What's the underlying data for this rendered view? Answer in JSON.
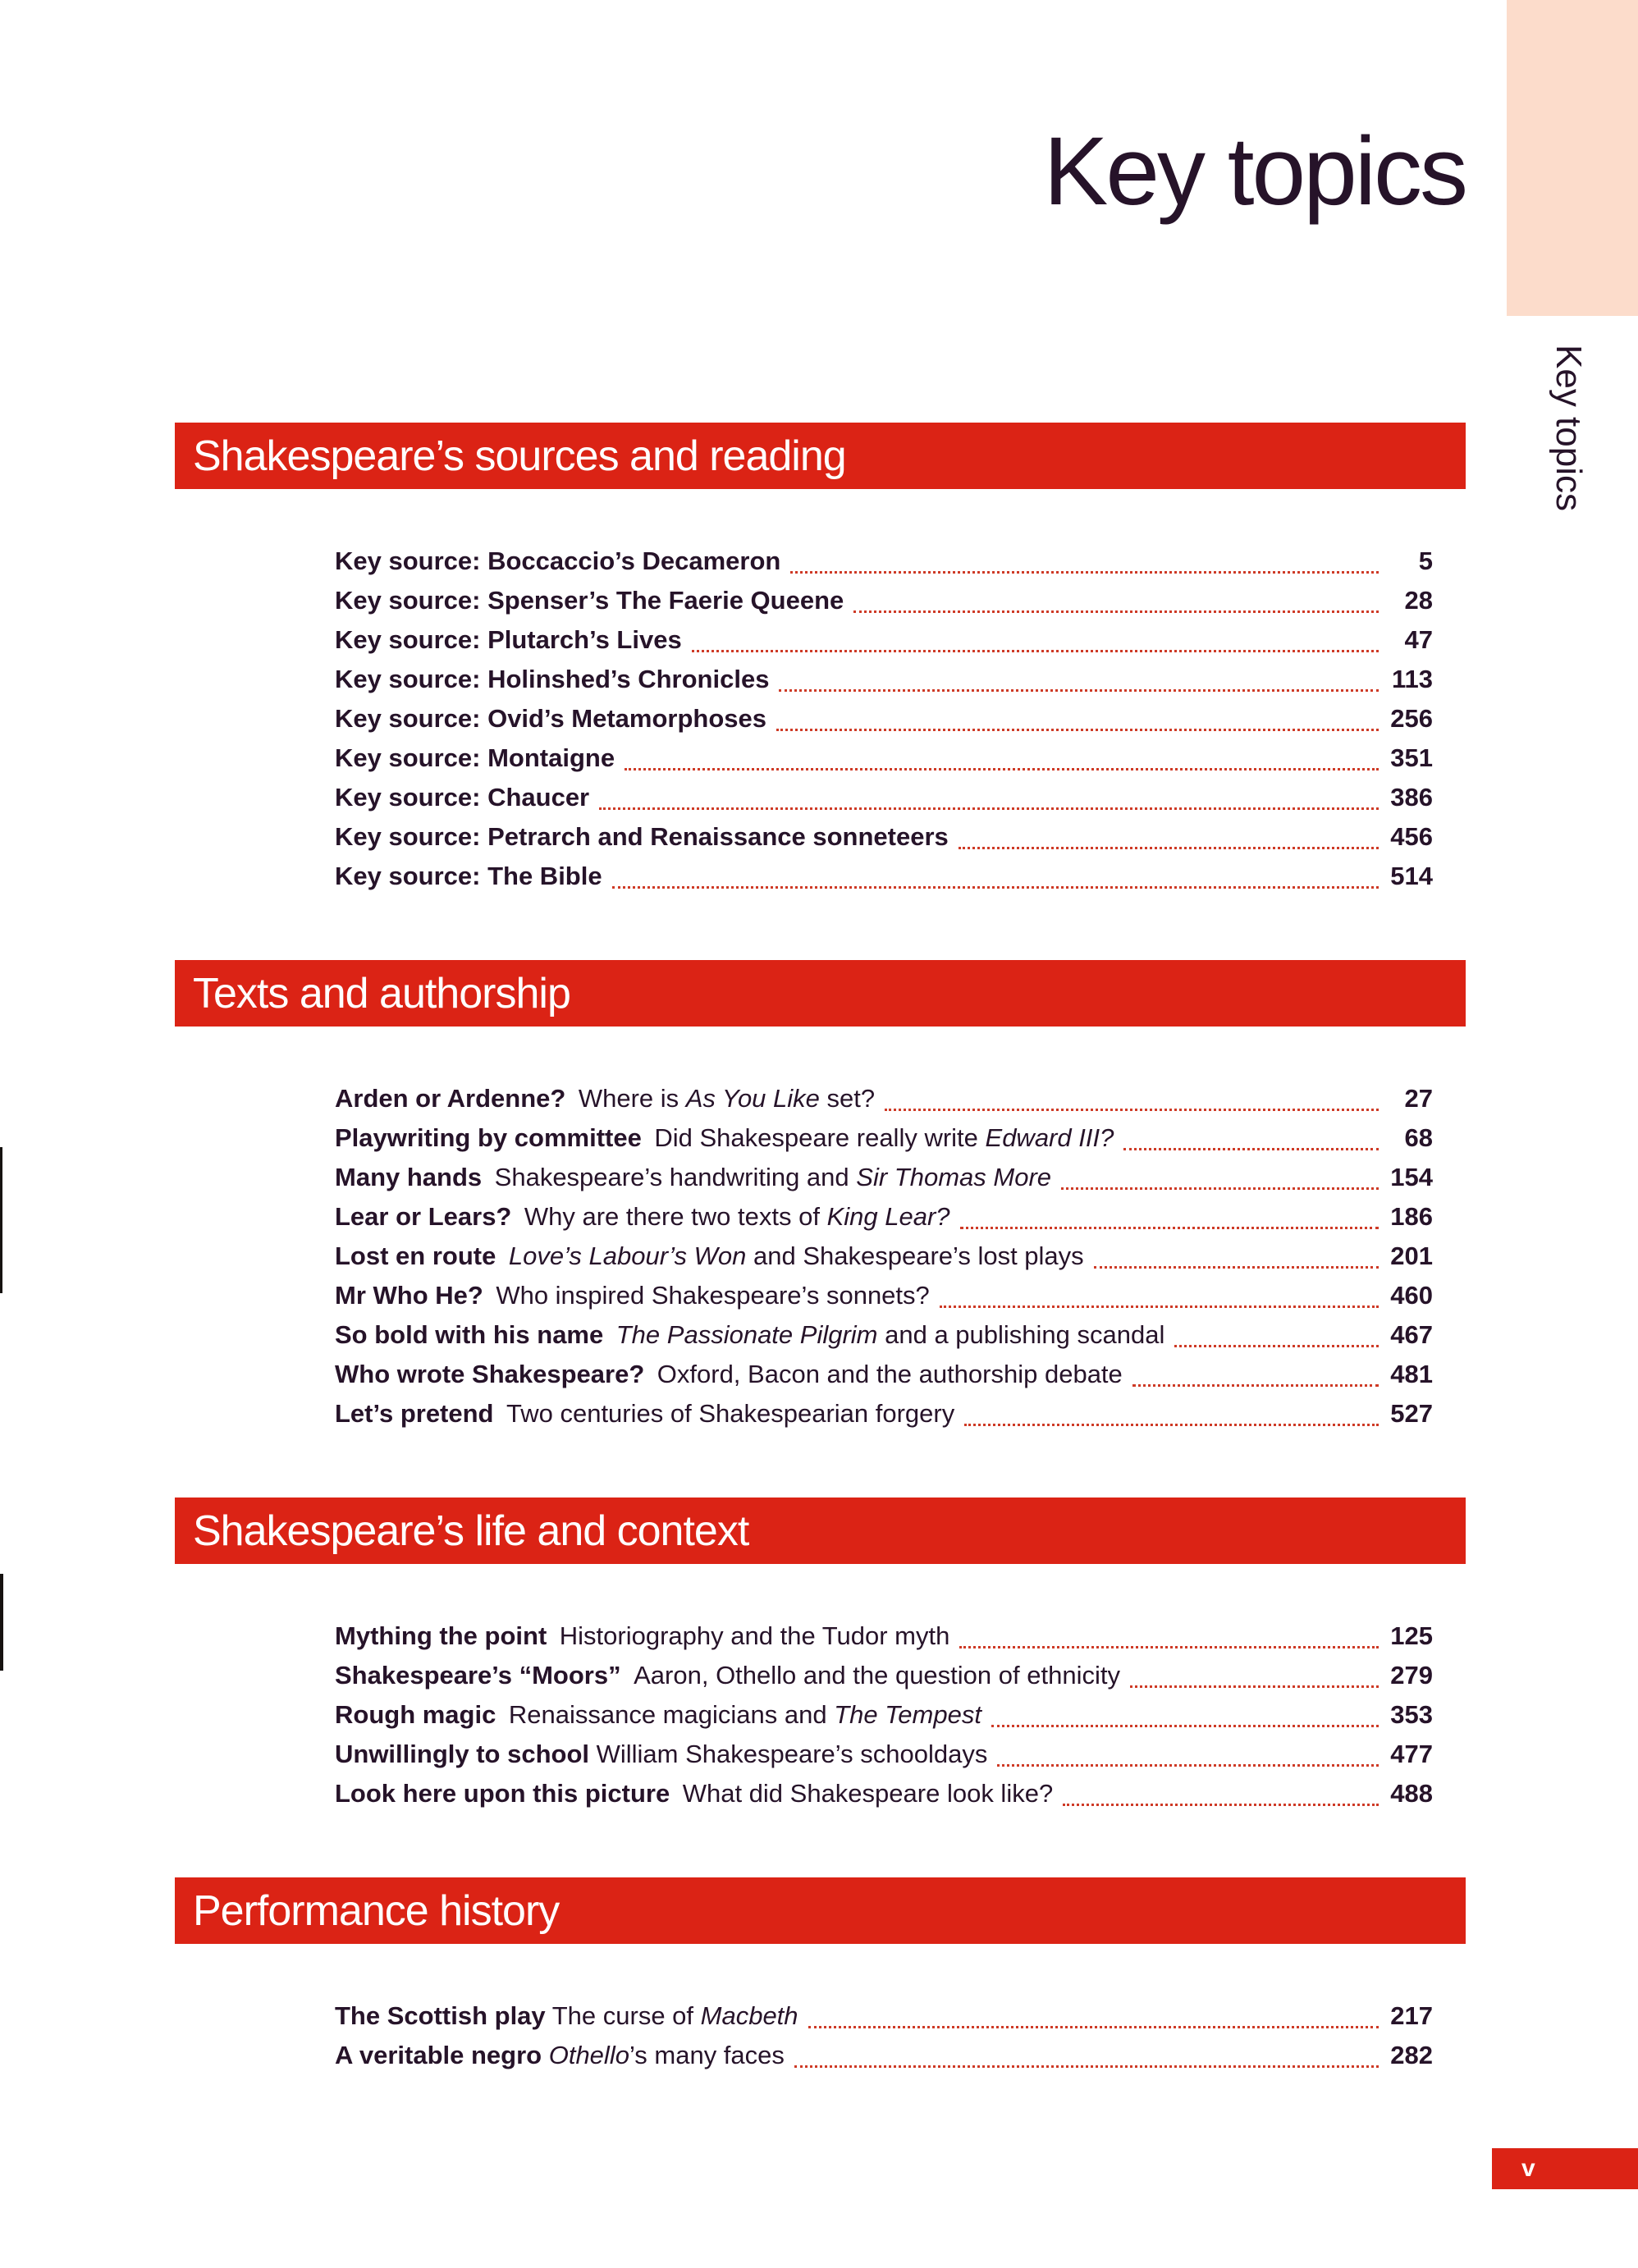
{
  "page": {
    "title": "Key topics",
    "side_tab_label": "Key topics",
    "folio": "v"
  },
  "colors": {
    "bar_red": "#db2315",
    "peach": "#fcdccb",
    "ink": "#261329",
    "leader_red": "#ce3a26"
  },
  "sections": [
    {
      "title": "Shakespeare’s sources and reading",
      "entries": [
        {
          "segments": [
            {
              "t": "Key source: Boccaccio’s Decameron",
              "s": "b"
            }
          ],
          "page": "5"
        },
        {
          "segments": [
            {
              "t": "Key source: Spenser’s The Faerie Queene",
              "s": "b"
            }
          ],
          "page": "28"
        },
        {
          "segments": [
            {
              "t": "Key source: Plutarch’s Lives",
              "s": "b"
            }
          ],
          "page": "47"
        },
        {
          "segments": [
            {
              "t": "Key source: Holinshed’s Chronicles",
              "s": "b"
            }
          ],
          "page": "113"
        },
        {
          "segments": [
            {
              "t": "Key source: Ovid’s Metamorphoses",
              "s": "b"
            }
          ],
          "page": "256"
        },
        {
          "segments": [
            {
              "t": "Key source: Montaigne",
              "s": "b"
            }
          ],
          "page": "351"
        },
        {
          "segments": [
            {
              "t": "Key source: Chaucer",
              "s": "b"
            }
          ],
          "page": "386"
        },
        {
          "segments": [
            {
              "t": "Key source: Petrarch and Renaissance sonneteers",
              "s": "b"
            }
          ],
          "page": "456"
        },
        {
          "segments": [
            {
              "t": "Key source: The Bible",
              "s": "b"
            }
          ],
          "page": "514"
        }
      ]
    },
    {
      "title": "Texts and authorship",
      "entries": [
        {
          "segments": [
            {
              "t": "Arden or Ardenne?",
              "s": "b"
            },
            {
              "t": " Where is ",
              "s": "r"
            },
            {
              "t": "As You Like",
              "s": "i"
            },
            {
              "t": " set?",
              "s": "r"
            }
          ],
          "page": "27"
        },
        {
          "segments": [
            {
              "t": "Playwriting by committee",
              "s": "b"
            },
            {
              "t": " Did Shakespeare really write ",
              "s": "r"
            },
            {
              "t": "Edward III?",
              "s": "i"
            }
          ],
          "page": "68"
        },
        {
          "segments": [
            {
              "t": "Many hands",
              "s": "b"
            },
            {
              "t": " Shakespeare’s handwriting and ",
              "s": "r"
            },
            {
              "t": "Sir Thomas More",
              "s": "i"
            }
          ],
          "page": "154"
        },
        {
          "segments": [
            {
              "t": "Lear or Lears?",
              "s": "b"
            },
            {
              "t": " Why are there two texts of ",
              "s": "r"
            },
            {
              "t": "King Lear?",
              "s": "i"
            }
          ],
          "page": "186"
        },
        {
          "segments": [
            {
              "t": "Lost en route",
              "s": "b"
            },
            {
              "t": " ",
              "s": "r"
            },
            {
              "t": "Love’s Labour’s Won",
              "s": "i"
            },
            {
              "t": " and Shakespeare’s lost plays",
              "s": "r"
            }
          ],
          "page": "201"
        },
        {
          "segments": [
            {
              "t": "Mr Who He?",
              "s": "b"
            },
            {
              "t": " Who inspired Shakespeare’s sonnets?",
              "s": "r"
            }
          ],
          "page": "460"
        },
        {
          "segments": [
            {
              "t": "So bold with his name",
              "s": "b"
            },
            {
              "t": " ",
              "s": "r"
            },
            {
              "t": "The Passionate Pilgrim",
              "s": "i"
            },
            {
              "t": " and a publishing scandal",
              "s": "r"
            }
          ],
          "page": "467"
        },
        {
          "segments": [
            {
              "t": "Who wrote Shakespeare?",
              "s": "b"
            },
            {
              "t": " Oxford, Bacon and the authorship debate",
              "s": "r"
            }
          ],
          "page": "481"
        },
        {
          "segments": [
            {
              "t": "Let’s pretend",
              "s": "b"
            },
            {
              "t": " Two centuries of Shakespearian forgery",
              "s": "r"
            }
          ],
          "page": "527"
        }
      ]
    },
    {
      "title": "Shakespeare’s life and context",
      "entries": [
        {
          "segments": [
            {
              "t": "Mything the point",
              "s": "b"
            },
            {
              "t": " Historiography and the Tudor myth",
              "s": "r"
            }
          ],
          "page": "125"
        },
        {
          "segments": [
            {
              "t": "Shakespeare’s “Moors”",
              "s": "b"
            },
            {
              "t": " Aaron, Othello and the question of ethnicity",
              "s": "r"
            }
          ],
          "page": "279"
        },
        {
          "segments": [
            {
              "t": "Rough magic",
              "s": "b"
            },
            {
              "t": " Renaissance magicians and ",
              "s": "r"
            },
            {
              "t": "The Tempest",
              "s": "i"
            }
          ],
          "page": "353"
        },
        {
          "segments": [
            {
              "t": "Unwillingly to school",
              "s": "b"
            },
            {
              "t": " William Shakespeare’s schooldays",
              "s": "r"
            }
          ],
          "page": "477"
        },
        {
          "segments": [
            {
              "t": "Look here upon this picture",
              "s": "b"
            },
            {
              "t": " What did Shakespeare look like?",
              "s": "r"
            }
          ],
          "page": "488"
        }
      ]
    },
    {
      "title": "Performance history",
      "entries": [
        {
          "segments": [
            {
              "t": "The Scottish play",
              "s": "b"
            },
            {
              "t": " The curse of ",
              "s": "r"
            },
            {
              "t": "Macbeth",
              "s": "i"
            }
          ],
          "page": "217"
        },
        {
          "segments": [
            {
              "t": "A veritable negro",
              "s": "b"
            },
            {
              "t": " ",
              "s": "r"
            },
            {
              "t": "Othello",
              "s": "i"
            },
            {
              "t": "’s many faces",
              "s": "r"
            }
          ],
          "page": "282"
        }
      ]
    }
  ]
}
